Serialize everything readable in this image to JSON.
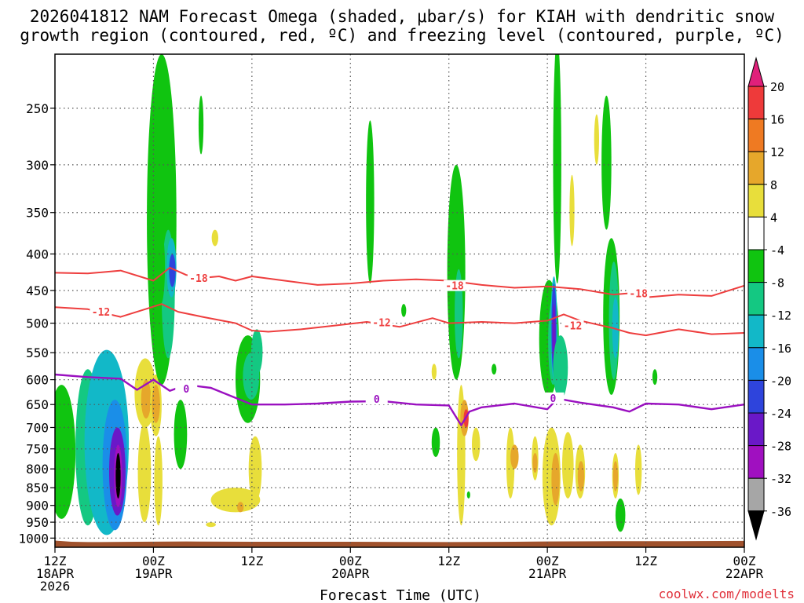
{
  "chart_data": {
    "type": "heatmap",
    "title": "2026041812 NAM Forecast Omega (shaded, μbar/s) for KIAH with dendritic snow",
    "subtitle": "growth region (contoured, red, ºC) and freezing level (contoured, purple, ºC)",
    "xlabel": "Forecast Time (UTC)",
    "ylabel": "",
    "credit": "coolwx.com/modelts",
    "x_unit": "hours since 2026041812",
    "xlim": [
      0,
      84
    ],
    "ylim": [
      1030,
      210
    ],
    "y_scale": "log-pressure",
    "grid": true,
    "x_ticks": [
      {
        "h": 0,
        "l1": "12Z",
        "l2": "18APR",
        "l3": "2026"
      },
      {
        "h": 12,
        "l1": "00Z",
        "l2": "19APR",
        "l3": ""
      },
      {
        "h": 24,
        "l1": "12Z",
        "l2": "",
        "l3": ""
      },
      {
        "h": 36,
        "l1": "00Z",
        "l2": "20APR",
        "l3": ""
      },
      {
        "h": 48,
        "l1": "12Z",
        "l2": "",
        "l3": ""
      },
      {
        "h": 60,
        "l1": "00Z",
        "l2": "21APR",
        "l3": ""
      },
      {
        "h": 72,
        "l1": "12Z",
        "l2": "",
        "l3": ""
      },
      {
        "h": 84,
        "l1": "00Z",
        "l2": "22APR",
        "l3": ""
      }
    ],
    "y_ticks": [
      250,
      300,
      350,
      400,
      450,
      500,
      550,
      600,
      650,
      700,
      750,
      800,
      850,
      900,
      950,
      1000
    ],
    "colorbar": {
      "labels": [
        "20",
        "16",
        "12",
        "8",
        "4",
        "-4",
        "-8",
        "-12",
        "-16",
        "-20",
        "-24",
        "-28",
        "-32",
        "-36"
      ],
      "bins": [
        {
          "lo": 16,
          "hi": 20,
          "color": "#ee3a3a"
        },
        {
          "lo": 12,
          "hi": 16,
          "color": "#ef7a22"
        },
        {
          "lo": 8,
          "hi": 12,
          "color": "#e6a72b"
        },
        {
          "lo": 4,
          "hi": 8,
          "color": "#e8de3b"
        },
        {
          "lo": -4,
          "hi": 4,
          "color": "#ffffff"
        },
        {
          "lo": -8,
          "hi": -4,
          "color": "#10c410"
        },
        {
          "lo": -12,
          "hi": -8,
          "color": "#14c882"
        },
        {
          "lo": -16,
          "hi": -12,
          "color": "#12b8c8"
        },
        {
          "lo": -20,
          "hi": -16,
          "color": "#1a8ee8"
        },
        {
          "lo": -24,
          "hi": -20,
          "color": "#2e44dc"
        },
        {
          "lo": -28,
          "hi": -24,
          "color": "#6a18c8"
        },
        {
          "lo": -32,
          "hi": -28,
          "color": "#a010c0"
        },
        {
          "lo": -36,
          "hi": -32,
          "color": "#a6a6a6"
        }
      ],
      "top_arrow_color": "#e0207a",
      "bottom_arrow_color": "#000000"
    },
    "omega_cells": [
      {
        "t": 0.8,
        "t0": 0,
        "t1": 2.5,
        "p0": 610,
        "p1": 940,
        "v": -7
      },
      {
        "t": 4,
        "t0": 3,
        "t1": 5.5,
        "p0": 580,
        "p1": 960,
        "v": -9
      },
      {
        "t": 6.3,
        "t0": 5,
        "t1": 9,
        "p0": 545,
        "p1": 990,
        "v": -14
      },
      {
        "t": 7.3,
        "t0": 6,
        "t1": 8.8,
        "p0": 640,
        "p1": 975,
        "v": -20
      },
      {
        "t": 7.6,
        "t0": 6.6,
        "t1": 8.5,
        "p0": 700,
        "p1": 930,
        "v": -28
      },
      {
        "t": 7.7,
        "t0": 7.2,
        "t1": 8.2,
        "p0": 740,
        "p1": 905,
        "v": -32
      },
      {
        "t": 7.7,
        "t0": 7.5,
        "t1": 8.0,
        "p0": 760,
        "p1": 880,
        "v": -37
      },
      {
        "t": 10.9,
        "t0": 10.2,
        "t1": 11.7,
        "p0": 690,
        "p1": 950,
        "v": 5
      },
      {
        "t": 11,
        "t0": 10.2,
        "t1": 12.3,
        "p0": 560,
        "p1": 700,
        "v": 6
      },
      {
        "t": 11.1,
        "t0": 10.6,
        "t1": 11.7,
        "p0": 600,
        "p1": 680,
        "v": 10
      },
      {
        "t": 12.3,
        "t0": 11.7,
        "t1": 13,
        "p0": 590,
        "p1": 720,
        "v": 7
      },
      {
        "t": 12.3,
        "t0": 11.8,
        "t1": 12.8,
        "p0": 610,
        "p1": 690,
        "v": 10
      },
      {
        "t": 12.6,
        "t0": 12.1,
        "t1": 13.1,
        "p0": 720,
        "p1": 960,
        "v": 5
      },
      {
        "t": 13,
        "t0": 12.3,
        "t1": 14.8,
        "p0": 210,
        "p1": 610,
        "v": -7
      },
      {
        "t": 13.8,
        "t0": 13.1,
        "t1": 14.6,
        "p0": 370,
        "p1": 560,
        "v": -10
      },
      {
        "t": 14.2,
        "t0": 13.7,
        "t1": 14.8,
        "p0": 380,
        "p1": 460,
        "v": -15
      },
      {
        "t": 14.3,
        "t0": 14.0,
        "t1": 14.7,
        "p0": 400,
        "p1": 445,
        "v": -21
      },
      {
        "t": 12.9,
        "t0": 12.5,
        "t1": 13.4,
        "p0": 370,
        "p1": 470,
        "v": -5
      },
      {
        "t": 15.3,
        "t0": 14.6,
        "t1": 16.1,
        "p0": 640,
        "p1": 800,
        "v": -6
      },
      {
        "t": 17.8,
        "t0": 17.6,
        "t1": 18.1,
        "p0": 240,
        "p1": 290,
        "v": -5
      },
      {
        "t": 19.5,
        "t0": 19.1,
        "t1": 19.9,
        "p0": 370,
        "p1": 390,
        "v": 5
      },
      {
        "t": 23.5,
        "t0": 22,
        "t1": 25,
        "p0": 520,
        "p1": 690,
        "v": -6
      },
      {
        "t": 23.9,
        "t0": 23,
        "t1": 24.9,
        "p0": 550,
        "p1": 640,
        "v": -9
      },
      {
        "t": 24.6,
        "t0": 24,
        "t1": 25.3,
        "p0": 510,
        "p1": 590,
        "v": -11
      },
      {
        "t": 22,
        "t0": 21,
        "t1": 25,
        "p0": 850,
        "p1": 920,
        "v": 5
      },
      {
        "t": 24.4,
        "t0": 23.6,
        "t1": 25.2,
        "p0": 720,
        "p1": 890,
        "v": 5
      },
      {
        "t": 22.6,
        "t0": 22.2,
        "t1": 23.0,
        "p0": 890,
        "p1": 920,
        "v": 9
      },
      {
        "t": 19,
        "t0": 18.5,
        "t1": 19.6,
        "p0": 950,
        "p1": 965,
        "v": 5
      },
      {
        "t": 38.4,
        "t0": 38,
        "t1": 38.9,
        "p0": 260,
        "p1": 440,
        "v": -6
      },
      {
        "t": 42.5,
        "t0": 42.3,
        "t1": 42.8,
        "p0": 470,
        "p1": 490,
        "v": -5
      },
      {
        "t": 46.2,
        "t0": 45.9,
        "t1": 46.5,
        "p0": 570,
        "p1": 600,
        "v": 5
      },
      {
        "t": 48.9,
        "t0": 47.8,
        "t1": 50.0,
        "p0": 300,
        "p1": 600,
        "v": -7
      },
      {
        "t": 49.2,
        "t0": 48.7,
        "t1": 49.7,
        "p0": 420,
        "p1": 560,
        "v": -11
      },
      {
        "t": 49.5,
        "t0": 49.0,
        "t1": 50.0,
        "p0": 610,
        "p1": 960,
        "v": 5
      },
      {
        "t": 49.9,
        "t0": 49.5,
        "t1": 50.4,
        "p0": 640,
        "p1": 720,
        "v": 10
      },
      {
        "t": 50.1,
        "t0": 49.8,
        "t1": 50.4,
        "p0": 660,
        "p1": 700,
        "v": 16
      },
      {
        "t": 51.3,
        "t0": 50.8,
        "t1": 51.8,
        "p0": 700,
        "p1": 780,
        "v": 5
      },
      {
        "t": 46.4,
        "t0": 46.0,
        "t1": 46.9,
        "p0": 700,
        "p1": 770,
        "v": -5
      },
      {
        "t": 50.4,
        "t0": 50.2,
        "t1": 50.6,
        "p0": 860,
        "p1": 880,
        "v": -5
      },
      {
        "t": 53.5,
        "t0": 53.2,
        "t1": 53.8,
        "p0": 570,
        "p1": 590,
        "v": -5
      },
      {
        "t": 55.5,
        "t0": 55.0,
        "t1": 56.0,
        "p0": 700,
        "p1": 880,
        "v": 5
      },
      {
        "t": 56,
        "t0": 55.5,
        "t1": 56.5,
        "p0": 740,
        "p1": 800,
        "v": 9
      },
      {
        "t": 60.2,
        "t0": 59.3,
        "t1": 61.4,
        "p0": 435,
        "p1": 635,
        "v": -7
      },
      {
        "t": 60.7,
        "t0": 60.2,
        "t1": 61.3,
        "p0": 460,
        "p1": 610,
        "v": -11
      },
      {
        "t": 60.8,
        "t0": 60.4,
        "t1": 61.2,
        "p0": 430,
        "p1": 600,
        "v": -16
      },
      {
        "t": 60.8,
        "t0": 60.5,
        "t1": 61.1,
        "p0": 440,
        "p1": 590,
        "v": -21
      },
      {
        "t": 60.8,
        "t0": 60.6,
        "t1": 61.0,
        "p0": 470,
        "p1": 570,
        "v": -25
      },
      {
        "t": 61.6,
        "t0": 61.0,
        "t1": 62.5,
        "p0": 520,
        "p1": 640,
        "v": -9
      },
      {
        "t": 61.2,
        "t0": 60.7,
        "t1": 61.7,
        "p0": 200,
        "p1": 440,
        "v": -6
      },
      {
        "t": 63,
        "t0": 62.8,
        "t1": 63.3,
        "p0": 310,
        "p1": 390,
        "v": 5
      },
      {
        "t": 60.5,
        "t0": 59.6,
        "t1": 61.6,
        "p0": 700,
        "p1": 960,
        "v": 5
      },
      {
        "t": 61,
        "t0": 60.5,
        "t1": 61.5,
        "p0": 760,
        "p1": 900,
        "v": 10
      },
      {
        "t": 62.5,
        "t0": 61.8,
        "t1": 63.2,
        "p0": 710,
        "p1": 880,
        "v": 5
      },
      {
        "t": 64,
        "t0": 63.5,
        "t1": 64.6,
        "p0": 740,
        "p1": 880,
        "v": 5
      },
      {
        "t": 64.1,
        "t0": 63.7,
        "t1": 64.5,
        "p0": 780,
        "p1": 860,
        "v": 10
      },
      {
        "t": 58.5,
        "t0": 58.1,
        "t1": 58.9,
        "p0": 720,
        "p1": 830,
        "v": 5
      },
      {
        "t": 58.5,
        "t0": 58.2,
        "t1": 58.8,
        "p0": 760,
        "p1": 810,
        "v": 9
      },
      {
        "t": 66,
        "t0": 65.7,
        "t1": 66.3,
        "p0": 255,
        "p1": 300,
        "v": 5
      },
      {
        "t": 67.2,
        "t0": 66.7,
        "t1": 67.8,
        "p0": 240,
        "p1": 370,
        "v": -6
      },
      {
        "t": 67.8,
        "t0": 66.9,
        "t1": 68.8,
        "p0": 380,
        "p1": 630,
        "v": -7
      },
      {
        "t": 68.1,
        "t0": 67.6,
        "t1": 68.7,
        "p0": 410,
        "p1": 600,
        "v": -11
      },
      {
        "t": 68.3,
        "t0": 68.0,
        "t1": 68.7,
        "p0": 460,
        "p1": 560,
        "v": -16
      },
      {
        "t": 68.3,
        "t0": 67.9,
        "t1": 68.7,
        "p0": 760,
        "p1": 880,
        "v": 5
      },
      {
        "t": 68.3,
        "t0": 68.0,
        "t1": 68.6,
        "p0": 780,
        "p1": 860,
        "v": 9
      },
      {
        "t": 68.9,
        "t0": 68.4,
        "t1": 69.5,
        "p0": 880,
        "p1": 980,
        "v": -7
      },
      {
        "t": 71.1,
        "t0": 70.8,
        "t1": 71.5,
        "p0": 740,
        "p1": 870,
        "v": 5
      },
      {
        "t": 73.1,
        "t0": 72.8,
        "t1": 73.4,
        "p0": 580,
        "p1": 610,
        "v": -5
      }
    ],
    "isotherm_m18": {
      "name": "-18",
      "color": "#ee3e3e",
      "x": [
        0,
        4,
        8,
        12,
        14,
        16,
        18,
        20,
        22,
        24,
        28,
        32,
        36,
        40,
        44,
        48,
        52,
        56,
        60,
        64,
        68,
        70,
        72,
        76,
        80,
        84
      ],
      "y": [
        425,
        426,
        422,
        436,
        418,
        428,
        432,
        430,
        436,
        430,
        436,
        442,
        440,
        436,
        434,
        436,
        442,
        446,
        444,
        448,
        456,
        454,
        460,
        456,
        458,
        443
      ],
      "labels": [
        {
          "x": 17.5,
          "p": 433,
          "text": "-18"
        },
        {
          "x": 48.7,
          "p": 444,
          "text": "-18"
        },
        {
          "x": 71.1,
          "p": 455,
          "text": "-18"
        }
      ]
    },
    "isotherm_m12": {
      "name": "-12",
      "color": "#ee3e3e",
      "x": [
        0,
        4,
        8,
        11,
        13,
        15,
        18,
        22,
        24,
        26,
        30,
        34,
        38,
        42,
        46,
        48,
        52,
        56,
        60,
        62,
        64,
        68,
        70,
        72,
        76,
        80,
        84
      ],
      "y": [
        475,
        478,
        490,
        478,
        470,
        482,
        490,
        500,
        512,
        514,
        510,
        504,
        498,
        506,
        492,
        500,
        498,
        500,
        496,
        486,
        496,
        508,
        516,
        520,
        510,
        518,
        516
      ],
      "labels": [
        {
          "x": 5.6,
          "p": 483,
          "text": "-12"
        },
        {
          "x": 39.8,
          "p": 500,
          "text": "-12"
        },
        {
          "x": 63.1,
          "p": 505,
          "text": "-12"
        }
      ]
    },
    "freezing_level": {
      "name": "0",
      "color": "#9a10c0",
      "x": [
        0,
        4,
        8,
        10,
        12,
        14,
        16,
        19,
        24,
        28,
        32,
        36,
        40,
        44,
        48,
        49.5,
        50.5,
        52,
        56,
        60,
        61,
        62,
        64,
        68,
        70,
        72,
        76,
        80,
        84
      ],
      "y": [
        590,
        595,
        598,
        620,
        600,
        622,
        610,
        616,
        650,
        650,
        648,
        644,
        643,
        650,
        652,
        695,
        665,
        656,
        648,
        660,
        642,
        640,
        646,
        656,
        665,
        648,
        650,
        660,
        650
      ],
      "labels": [
        {
          "x": 16.0,
          "p": 619,
          "text": "0"
        },
        {
          "x": 39.2,
          "p": 640,
          "text": "0"
        },
        {
          "x": 60.7,
          "p": 638,
          "text": "0"
        }
      ]
    },
    "terrain": {
      "color": "#a0522d",
      "surface_hPa": [
        1008,
        1012,
        1013,
        1012,
        1011,
        1012,
        1012,
        1013,
        1012,
        1011,
        1010,
        1010,
        1009
      ],
      "times": [
        0,
        2,
        4,
        10,
        16,
        24,
        36,
        48,
        56,
        60,
        68,
        76,
        84
      ]
    }
  }
}
